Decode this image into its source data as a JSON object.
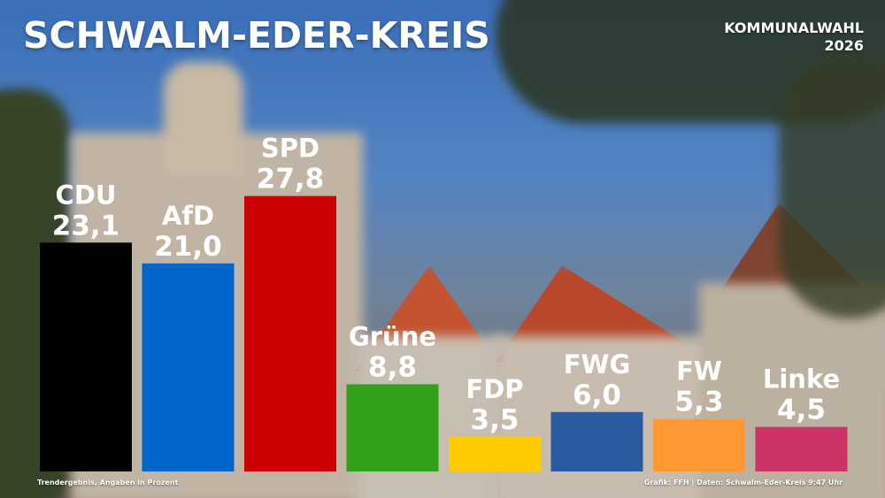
{
  "header": {
    "title": "SCHWALM-EDER-KREIS",
    "badge_line1": "KOMMUNALWAHL",
    "badge_line2": "2026"
  },
  "footer": {
    "note_left": "Trendergebnis, Angaben in Prozent",
    "note_right": "Grafik: FFH | Daten: Schwalm-Eder-Kreis 9:47 Uhr"
  },
  "chart_data": {
    "type": "bar",
    "categories": [
      "CDU",
      "AfD",
      "SPD",
      "Grüne",
      "FDP",
      "FWG",
      "FW",
      "Linke"
    ],
    "values": [
      23.1,
      21.0,
      27.8,
      8.8,
      3.5,
      6.0,
      5.3,
      4.5
    ],
    "value_labels": [
      "23,1",
      "21,0",
      "27,8",
      "8,8",
      "3,5",
      "6,0",
      "5,3",
      "4,5"
    ],
    "colors": [
      "#000000",
      "#0066cc",
      "#cc0000",
      "#33a01c",
      "#ffcc00",
      "#2b5aa0",
      "#ff9933",
      "#cc3366"
    ],
    "title": "SCHWALM-EDER-KREIS",
    "xlabel": "",
    "ylabel": "",
    "grid": false,
    "legend": "none"
  }
}
